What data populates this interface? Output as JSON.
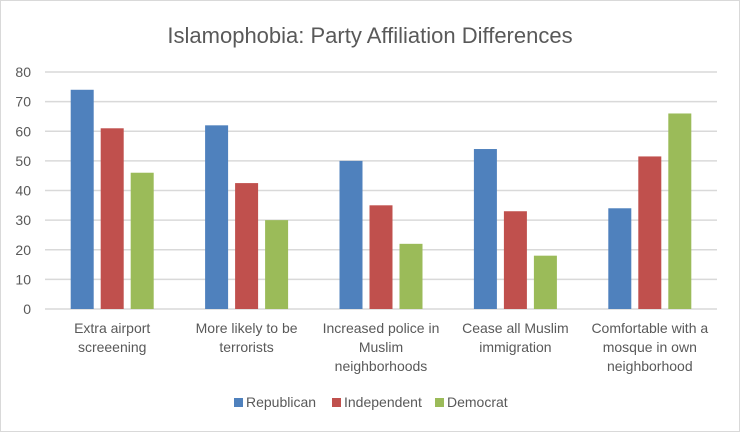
{
  "chart_data": {
    "type": "bar",
    "title": "Islamophobia: Party Affiliation Differences",
    "xlabel": "",
    "ylabel": "",
    "ylim": [
      0,
      80
    ],
    "yticks": [
      0,
      10,
      20,
      30,
      40,
      50,
      60,
      70,
      80
    ],
    "grid": true,
    "legend_position": "bottom",
    "categories": [
      [
        "Extra airport",
        "screeening"
      ],
      [
        "More likely to be",
        "terrorists"
      ],
      [
        "Increased police in",
        "Muslim",
        "neighborhoods"
      ],
      [
        "Cease all Muslim",
        "immigration"
      ],
      [
        "Comfortable with a",
        "mosque in own",
        "neighborhood"
      ]
    ],
    "series": [
      {
        "name": "Republican",
        "color": "#4f81bd",
        "values": [
          74,
          62,
          50,
          54,
          34
        ]
      },
      {
        "name": "Independent",
        "color": "#c0504d",
        "values": [
          61,
          42.5,
          35,
          33,
          51.5
        ]
      },
      {
        "name": "Democrat",
        "color": "#9bbb59",
        "values": [
          46,
          30,
          22,
          18,
          66
        ]
      }
    ]
  }
}
